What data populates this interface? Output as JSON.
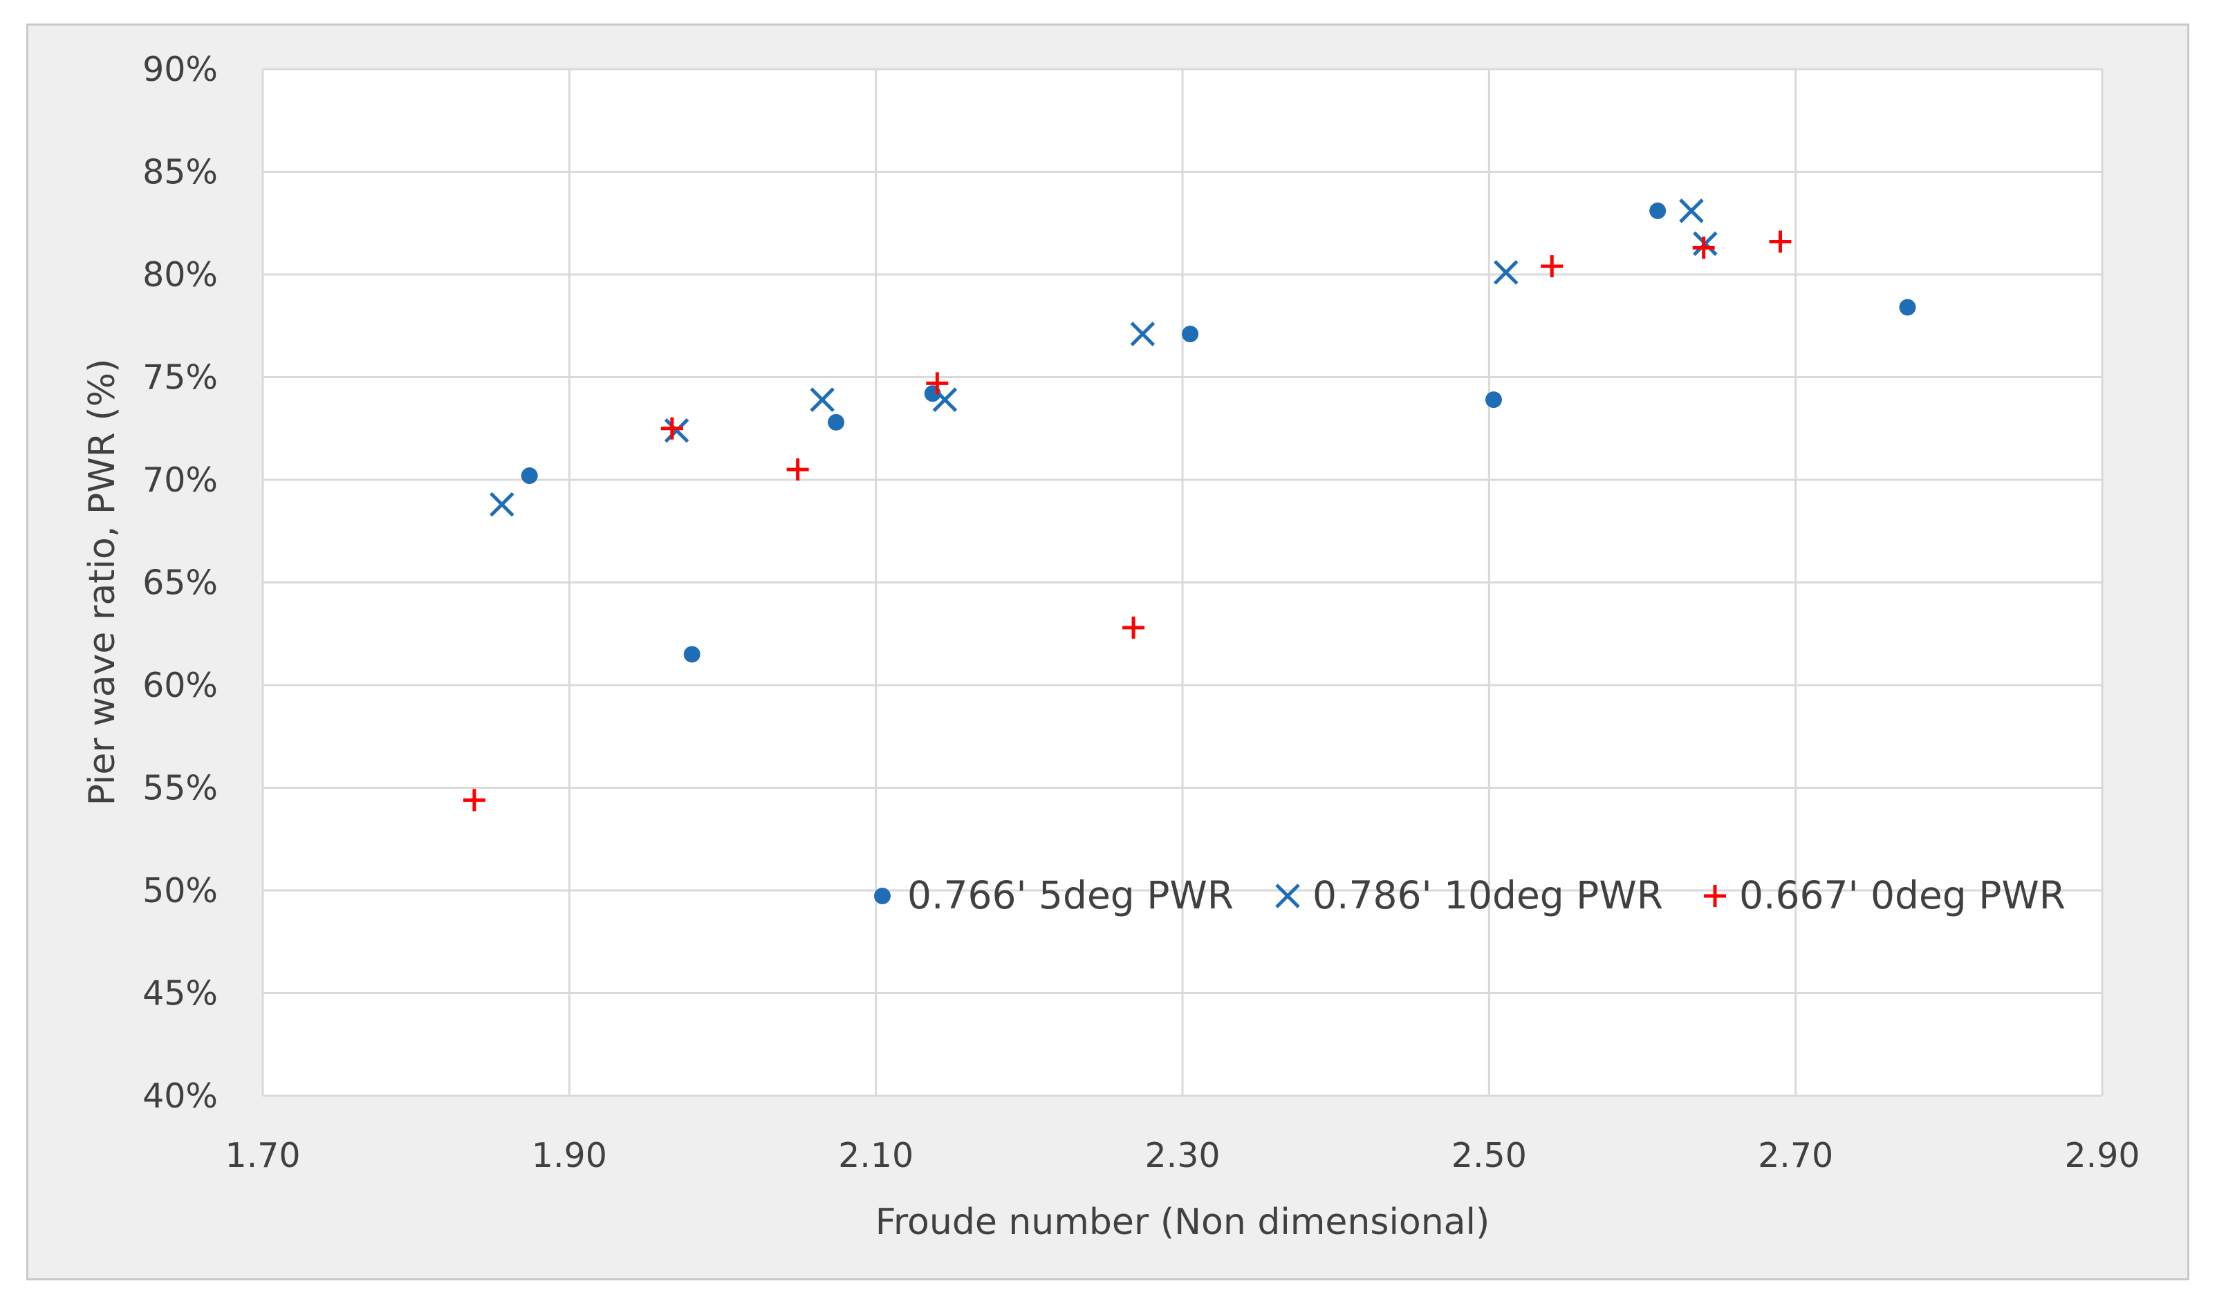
{
  "chart_data": {
    "type": "scatter",
    "title": "",
    "xlabel": "Froude number (Non dimensional)",
    "ylabel": "Pier wave ratio, PWR (%)",
    "xlim": [
      1.7,
      2.9
    ],
    "ylim": [
      40,
      90
    ],
    "grid": true,
    "legend_position": "inside-center-right",
    "x_ticks": [
      "1.70",
      "1.90",
      "2.10",
      "2.30",
      "2.50",
      "2.70",
      "2.90"
    ],
    "y_ticks": [
      "40%",
      "45%",
      "50%",
      "55%",
      "60%",
      "65%",
      "70%",
      "75%",
      "80%",
      "85%",
      "90%"
    ],
    "series": [
      {
        "name": "0.766' 5deg PWR",
        "marker": "circle",
        "color": "#1f6eb5",
        "points": [
          {
            "x": 1.874,
            "y": 70.2
          },
          {
            "x": 1.98,
            "y": 61.5
          },
          {
            "x": 2.074,
            "y": 72.8
          },
          {
            "x": 2.137,
            "y": 74.2
          },
          {
            "x": 2.305,
            "y": 77.1
          },
          {
            "x": 2.503,
            "y": 73.9
          },
          {
            "x": 2.61,
            "y": 83.1
          },
          {
            "x": 2.773,
            "y": 78.4
          }
        ]
      },
      {
        "name": "0.786' 10deg PWR",
        "marker": "x",
        "color": "#1f6eb5",
        "points": [
          {
            "x": 1.856,
            "y": 68.8
          },
          {
            "x": 1.97,
            "y": 72.4
          },
          {
            "x": 2.065,
            "y": 73.9
          },
          {
            "x": 2.145,
            "y": 73.9
          },
          {
            "x": 2.274,
            "y": 77.1
          },
          {
            "x": 2.511,
            "y": 80.1
          },
          {
            "x": 2.632,
            "y": 83.1
          },
          {
            "x": 2.641,
            "y": 81.5
          }
        ]
      },
      {
        "name": "0.667' 0deg PWR",
        "marker": "plus",
        "color": "#ff0000",
        "points": [
          {
            "x": 1.838,
            "y": 54.4
          },
          {
            "x": 1.967,
            "y": 72.5
          },
          {
            "x": 2.049,
            "y": 70.5
          },
          {
            "x": 2.14,
            "y": 74.7
          },
          {
            "x": 2.268,
            "y": 62.8
          },
          {
            "x": 2.541,
            "y": 80.4
          },
          {
            "x": 2.64,
            "y": 81.3
          },
          {
            "x": 2.69,
            "y": 81.6
          }
        ]
      }
    ]
  }
}
